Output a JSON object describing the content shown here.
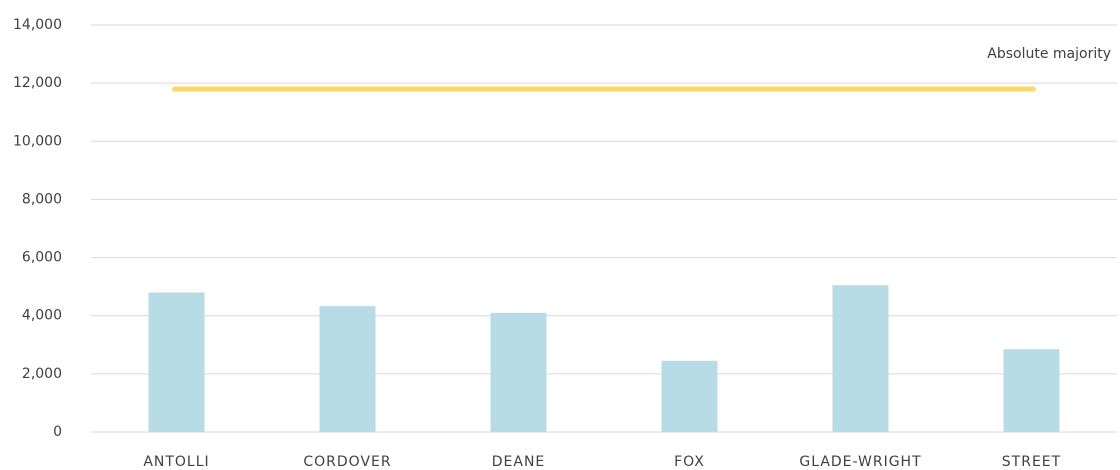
{
  "chart_data": {
    "type": "bar",
    "categories": [
      "ANTOLLI",
      "CORDOVER",
      "DEANE",
      "FOX",
      "GLADE-WRIGHT",
      "STREET"
    ],
    "values": [
      4800,
      4330,
      4100,
      2450,
      5050,
      2850
    ],
    "color": "#b7dce5",
    "ylim": [
      0,
      14000
    ],
    "yticks": [
      0,
      {
        "value": 2000,
        "label": "2,000"
      },
      {
        "value": 4000,
        "label": "4,000"
      },
      {
        "value": 6000,
        "label": "6,000"
      },
      {
        "value": 8000,
        "label": "8,000"
      },
      {
        "value": 10000,
        "label": "10,000"
      },
      {
        "value": 12000,
        "label": "12,000"
      },
      {
        "value": 14000,
        "label": "14,000"
      }
    ],
    "grid": true,
    "reference_line": {
      "value": 11800,
      "label": "Absolute majority",
      "color": "#fdd866"
    }
  }
}
